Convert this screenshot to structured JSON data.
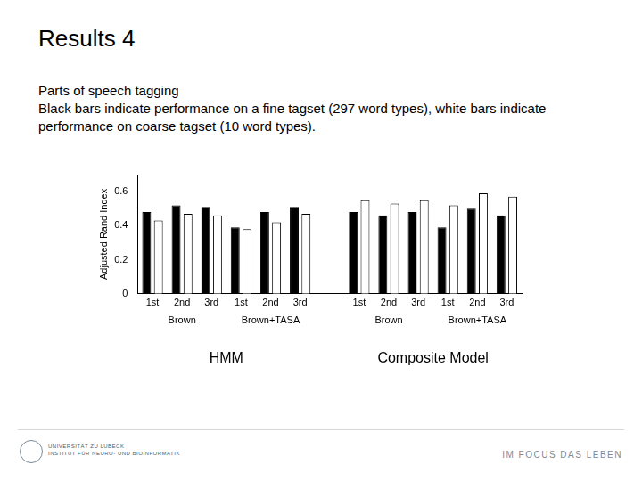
{
  "slide": {
    "title": "Results 4",
    "text": [
      "Parts of speech tagging",
      "Black bars indicate performance on a fine tagset (297 word types), white bars indicate performance on coarse tagset (10 word types)."
    ],
    "logo_text": [
      "UNIVERSITÄT ZU LÜBECK",
      "INSTITUT FÜR NEURO- UND BIOINFORMATIK"
    ],
    "footer": "IM FOCUS DAS LEBEN"
  },
  "chart_data": {
    "type": "bar",
    "y_label": "Adjusted Rand Index",
    "categories": [
      "1st",
      "2nd",
      "3rd",
      "1st",
      "2nd",
      "3rd",
      null,
      "1st",
      "2nd",
      "3rd",
      "1st",
      "2nd",
      "3rd"
    ],
    "category_groups": [
      "Brown",
      "Brown",
      "Brown",
      "Brown+TASA",
      "Brown+TASA",
      "Brown+TASA",
      null,
      "Brown",
      "Brown",
      "Brown",
      "Brown+TASA",
      "Brown+TASA",
      "Brown+TASA"
    ],
    "category_supergroups": [
      "HMM",
      "HMM",
      "HMM",
      "HMM",
      "HMM",
      "HMM",
      null,
      "Composite Model",
      "Composite Model",
      "Composite Model",
      "Composite Model",
      "Composite Model",
      "Composite Model"
    ],
    "series": [
      {
        "color": "#000000",
        "values": [
          0.48,
          0.52,
          0.51,
          0.39,
          0.48,
          0.51,
          null,
          0.48,
          0.46,
          0.48,
          0.39,
          0.5,
          0.46
        ]
      },
      {
        "color": "#ffffff",
        "values": [
          0.43,
          0.47,
          0.46,
          0.38,
          0.42,
          0.47,
          null,
          0.55,
          0.53,
          0.55,
          0.52,
          0.59,
          0.57
        ]
      }
    ],
    "ylim": [
      0,
      0.7
    ],
    "yticks": [
      0,
      0.2,
      0.4,
      0.6
    ],
    "grid": false
  }
}
